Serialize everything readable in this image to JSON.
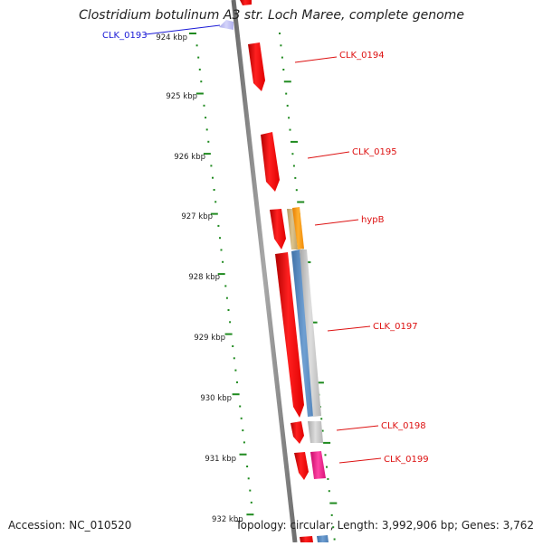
{
  "title": "Clostridium botulinum A3 str. Loch Maree, complete genome",
  "accession": "Accession: NC_010520",
  "summary": "Topology: circular; Length: 3,992,906 bp; Genes: 3,762",
  "colors": {
    "backbone": "#8a8a8a",
    "tick": "#1f8a1f",
    "forward_gene": "#ee1111",
    "reverse_gene": "#5b8fc4",
    "label_red": "#dd1111",
    "label_blue": "#1a1ad6",
    "orange_gene": "#ff9a10",
    "tan_gene": "#cdb27a",
    "grey_gene": "#c8c8c8",
    "pink_gene": "#f0208a",
    "lavender_gene": "#bcbcf2"
  },
  "scale_ticks": [
    "924 kbp",
    "925 kbp",
    "926 kbp",
    "927 kbp",
    "928 kbp",
    "929 kbp",
    "930 kbp",
    "931 kbp",
    "932 kbp"
  ],
  "gene_labels": [
    {
      "id": "clk-0193",
      "text": "CLK_0193",
      "color": "label_blue"
    },
    {
      "id": "clk-0194",
      "text": "CLK_0194",
      "color": "label_red"
    },
    {
      "id": "clk-0195",
      "text": "CLK_0195",
      "color": "label_red"
    },
    {
      "id": "hypb",
      "text": "hypB",
      "color": "label_red"
    },
    {
      "id": "clk-0197",
      "text": "CLK_0197",
      "color": "label_red"
    },
    {
      "id": "clk-0198",
      "text": "CLK_0198",
      "color": "label_red"
    },
    {
      "id": "clk-0199",
      "text": "CLK_0199",
      "color": "label_red"
    }
  ]
}
